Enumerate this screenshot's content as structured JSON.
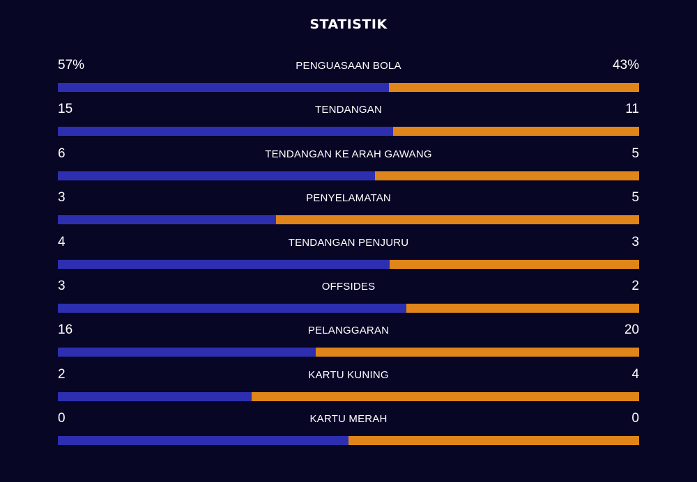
{
  "title": "STATISTIK",
  "colors": {
    "background": "#080625",
    "home": "#2e2fb0",
    "away": "#df8519"
  },
  "stats": [
    {
      "label": "PENGUASAAN BOLA",
      "home": "57%",
      "away": "43%",
      "home_share": 0.57
    },
    {
      "label": "TENDANGAN",
      "home": "15",
      "away": "11",
      "home_share": 0.577
    },
    {
      "label": "TENDANGAN KE ARAH GAWANG",
      "home": "6",
      "away": "5",
      "home_share": 0.545
    },
    {
      "label": "PENYELAMATAN",
      "home": "3",
      "away": "5",
      "home_share": 0.375
    },
    {
      "label": "TENDANGAN PENJURU",
      "home": "4",
      "away": "3",
      "home_share": 0.571
    },
    {
      "label": "OFFSIDES",
      "home": "3",
      "away": "2",
      "home_share": 0.6
    },
    {
      "label": "PELANGGARAN",
      "home": "16",
      "away": "20",
      "home_share": 0.444
    },
    {
      "label": "KARTU KUNING",
      "home": "2",
      "away": "4",
      "home_share": 0.333
    },
    {
      "label": "KARTU MERAH",
      "home": "0",
      "away": "0",
      "home_share": 0.5
    }
  ]
}
